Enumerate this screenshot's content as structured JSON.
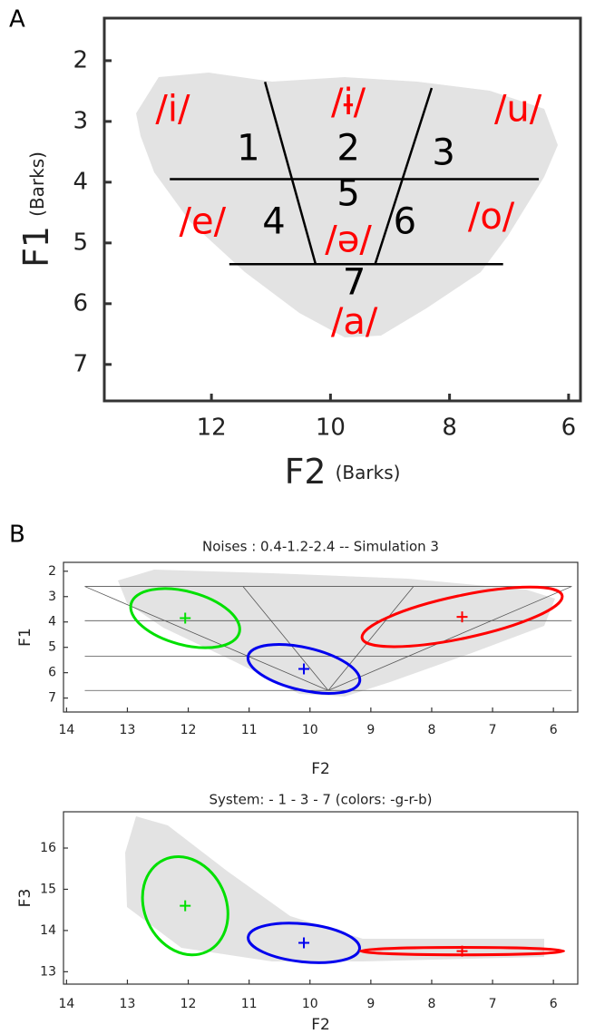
{
  "chart_data": [
    {
      "panel": "A",
      "type": "scatter",
      "xlabel": "F2",
      "xlabel_unit": "(Barks)",
      "ylabel": "F1",
      "ylabel_unit": "(Barks)",
      "xlim": [
        13.8,
        5.8
      ],
      "ylim": [
        7.6,
        1.3
      ],
      "xticks": [
        12,
        10,
        8,
        6
      ],
      "yticks": [
        2,
        3,
        4,
        5,
        6,
        7
      ],
      "line_color": "#000000",
      "lines": [
        {
          "x": [
            12.7,
            6.5
          ],
          "y": [
            3.95,
            3.95
          ]
        },
        {
          "x": [
            11.7,
            7.1
          ],
          "y": [
            5.35,
            5.35
          ]
        },
        {
          "x": [
            11.1,
            10.25
          ],
          "y": [
            2.35,
            5.35
          ]
        },
        {
          "x": [
            8.3,
            9.25
          ],
          "y": [
            2.45,
            5.35
          ]
        }
      ],
      "annotations": [
        {
          "text": "/i/",
          "x": 12.65,
          "y": 2.83,
          "color": "#ff0000"
        },
        {
          "text": "/ɨ/",
          "x": 9.7,
          "y": 2.72,
          "color": "#ff0000"
        },
        {
          "text": "/u/",
          "x": 6.85,
          "y": 2.83,
          "color": "#ff0000"
        },
        {
          "text": "/e/",
          "x": 12.15,
          "y": 4.68,
          "color": "#ff0000"
        },
        {
          "text": "/ə/",
          "x": 9.7,
          "y": 4.98,
          "color": "#ff0000"
        },
        {
          "text": "/o/",
          "x": 7.3,
          "y": 4.6,
          "color": "#ff0000"
        },
        {
          "text": "/a/",
          "x": 9.6,
          "y": 6.33,
          "color": "#ff0000"
        },
        {
          "text": "1",
          "x": 11.38,
          "y": 3.47,
          "color": "#000000"
        },
        {
          "text": "2",
          "x": 9.7,
          "y": 3.47,
          "color": "#000000"
        },
        {
          "text": "3",
          "x": 8.1,
          "y": 3.55,
          "color": "#000000"
        },
        {
          "text": "5",
          "x": 9.7,
          "y": 4.22,
          "color": "#000000"
        },
        {
          "text": "4",
          "x": 10.95,
          "y": 4.68,
          "color": "#000000"
        },
        {
          "text": "6",
          "x": 8.75,
          "y": 4.68,
          "color": "#000000"
        },
        {
          "text": "7",
          "x": 9.6,
          "y": 5.68,
          "color": "#000000"
        }
      ]
    },
    {
      "panel": "B",
      "type": "scatter",
      "title": "Noises : 0.4-1.2-2.4 -- Simulation 3",
      "xlabel": "F2",
      "ylabel": "F1",
      "xlim": [
        14.05,
        5.6
      ],
      "ylim": [
        7.55,
        1.65
      ],
      "xticks": [
        14,
        13,
        12,
        11,
        10,
        9,
        8,
        7,
        6
      ],
      "yticks": [
        2,
        3,
        4,
        5,
        6,
        7
      ],
      "line_color": "#555555",
      "lines": [
        {
          "x": [
            13.7,
            5.7
          ],
          "y": [
            2.6,
            2.6
          ]
        },
        {
          "x": [
            13.7,
            5.7
          ],
          "y": [
            3.95,
            3.95
          ]
        },
        {
          "x": [
            13.7,
            5.7
          ],
          "y": [
            5.35,
            5.35
          ]
        },
        {
          "x": [
            13.7,
            5.7
          ],
          "y": [
            6.7,
            6.7
          ]
        },
        {
          "x": [
            13.7,
            9.7
          ],
          "y": [
            2.6,
            6.7
          ]
        },
        {
          "x": [
            11.1,
            9.7
          ],
          "y": [
            2.6,
            6.7
          ]
        },
        {
          "x": [
            8.3,
            9.7
          ],
          "y": [
            2.6,
            6.7
          ]
        },
        {
          "x": [
            5.7,
            9.7
          ],
          "y": [
            2.6,
            6.7
          ]
        }
      ],
      "ellipses": [
        {
          "color": "#00e000",
          "x": 12.05,
          "y": 3.85,
          "rx": 0.92,
          "ry": 1.05,
          "angle": 15
        },
        {
          "color": "#ff0000",
          "x": 7.5,
          "y": 3.8,
          "rx": 1.68,
          "ry": 0.84,
          "angle": -12
        },
        {
          "color": "#0000ee",
          "x": 10.1,
          "y": 5.85,
          "rx": 0.94,
          "ry": 0.84,
          "angle": 13
        }
      ]
    },
    {
      "type": "scatter",
      "title": "System: - 1 - 3 - 7  (colors: -g-r-b)",
      "xlabel": "F2",
      "ylabel": "F3",
      "xlim": [
        14.05,
        5.6
      ],
      "ylim": [
        12.7,
        16.88
      ],
      "xticks": [
        14,
        13,
        12,
        11,
        10,
        9,
        8,
        7,
        6
      ],
      "yticks": [
        13,
        14,
        15,
        16
      ],
      "ellipses": [
        {
          "color": "#00e000",
          "x": 12.05,
          "y": 14.6,
          "rx": 0.67,
          "ry": 1.23,
          "angle": -25
        },
        {
          "color": "#0000ee",
          "x": 10.1,
          "y": 13.7,
          "rx": 0.92,
          "ry": 0.46,
          "angle": 6
        },
        {
          "color": "#ff0000",
          "x": 7.5,
          "y": 13.5,
          "rx": 1.67,
          "ry": 0.09,
          "angle": 0
        }
      ]
    }
  ]
}
